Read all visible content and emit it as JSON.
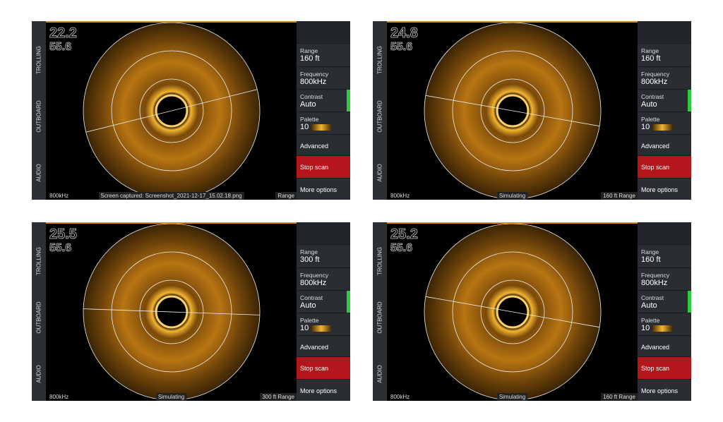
{
  "panels": [
    {
      "sidebar": [
        "TROLLING",
        "OUTBOARD",
        "AUDIO"
      ],
      "depth": "22.2",
      "temp": "55.6",
      "menu": [
        {
          "label": "Range",
          "value": "160 ft"
        },
        {
          "label": "Frequency",
          "value": "800kHz"
        },
        {
          "label": "Contrast",
          "value": "Auto"
        },
        {
          "label": "Palette",
          "value": "10"
        },
        {
          "label": "Advanced"
        },
        {
          "label": "Stop scan"
        },
        {
          "label": "More options"
        }
      ],
      "status": {
        "frequency": "800kHz",
        "center": "Screen captured: Screenshot_2021-12-17_15.02.18.png",
        "right": "Range"
      }
    },
    {
      "sidebar": [
        "TROLLING",
        "OUTBOARD",
        "AUDIO"
      ],
      "depth": "24.8",
      "temp": "55.6",
      "menu": [
        {
          "label": "Range",
          "value": "160 ft"
        },
        {
          "label": "Frequency",
          "value": "800kHz"
        },
        {
          "label": "Contrast",
          "value": "Auto"
        },
        {
          "label": "Palette",
          "value": "10"
        },
        {
          "label": "Advanced"
        },
        {
          "label": "Stop scan"
        },
        {
          "label": "More options"
        }
      ],
      "status": {
        "frequency": "800kHz",
        "center": "Simulating",
        "right": "160 ft Range"
      }
    },
    {
      "sidebar": [
        "TROLLING",
        "OUTBOARD",
        "AUDIO"
      ],
      "depth": "25.5",
      "temp": "55.6",
      "menu": [
        {
          "label": "Range",
          "value": "300 ft"
        },
        {
          "label": "Frequency",
          "value": "800kHz"
        },
        {
          "label": "Contrast",
          "value": "Auto"
        },
        {
          "label": "Palette",
          "value": "10"
        },
        {
          "label": "Advanced"
        },
        {
          "label": "Stop scan"
        },
        {
          "label": "More options"
        }
      ],
      "status": {
        "frequency": "800kHz",
        "center": "Simulating",
        "right": "300 ft Range"
      }
    },
    {
      "sidebar": [
        "TROLLING",
        "OUTBOARD",
        "AUDIO"
      ],
      "depth": "25.2",
      "temp": "55.6",
      "menu": [
        {
          "label": "Range",
          "value": "160 ft"
        },
        {
          "label": "Frequency",
          "value": "800kHz"
        },
        {
          "label": "Contrast",
          "value": "Auto"
        },
        {
          "label": "Palette",
          "value": "10"
        },
        {
          "label": "Advanced"
        },
        {
          "label": "Stop scan"
        },
        {
          "label": "More options"
        }
      ],
      "status": {
        "frequency": "800kHz",
        "center": "Simulating",
        "right": "160 ft Range"
      }
    }
  ]
}
